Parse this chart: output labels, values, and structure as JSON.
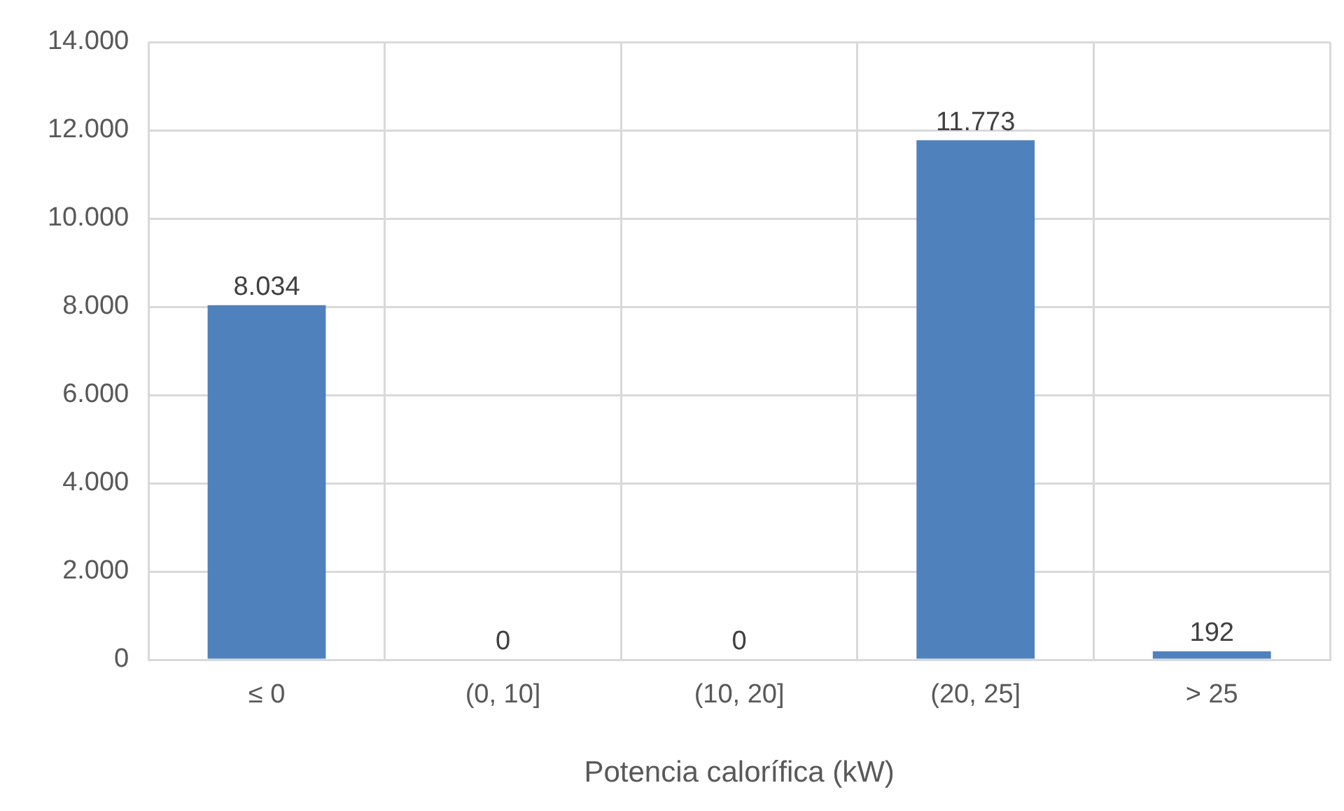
{
  "chart_data": {
    "type": "bar",
    "xlabel": "Potencia calorífica (kW)",
    "categories": [
      "≤ 0",
      "(0, 10]",
      "(10, 20]",
      "(20, 25]",
      "> 25"
    ],
    "values": [
      8034,
      0,
      0,
      11773,
      192
    ],
    "value_labels": [
      "8.034",
      "0",
      "0",
      "11.773",
      "192"
    ],
    "color": "#4f81bd",
    "ylim": [
      0,
      14000
    ],
    "yticks": [
      {
        "value": 0,
        "label": "0"
      },
      {
        "value": 2000,
        "label": "2.000"
      },
      {
        "value": 4000,
        "label": "4.000"
      },
      {
        "value": 6000,
        "label": "6.000"
      },
      {
        "value": 8000,
        "label": "8.000"
      },
      {
        "value": 10000,
        "label": "10.000"
      },
      {
        "value": 12000,
        "label": "12.000"
      },
      {
        "value": 14000,
        "label": "14.000"
      }
    ],
    "grid": true,
    "legend": false
  }
}
